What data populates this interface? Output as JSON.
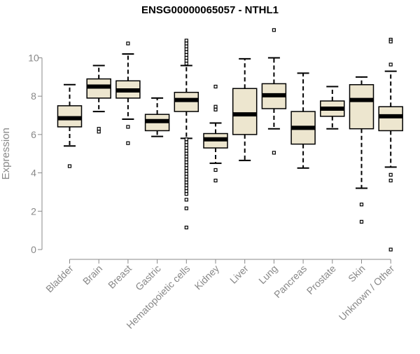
{
  "chart_data": {
    "type": "box",
    "title": "ENSG00000065057 - NTHL1",
    "xlabel": "",
    "ylabel": "Expression",
    "ylim": [
      0,
      11.5
    ],
    "yticks": [
      0,
      2,
      4,
      6,
      8,
      10
    ],
    "grid": false,
    "legend": "none",
    "colors": {
      "box_fill": "#ede6cf",
      "stroke": "#000000",
      "axis": "#888888",
      "tick_label": "#888888"
    },
    "categories": [
      "Bladder",
      "Brain",
      "Breast",
      "Gastric",
      "Hematopoietic cells",
      "Kidney",
      "Liver",
      "Lung",
      "Pancreas",
      "Prostate",
      "Skin",
      "Unknown / Other"
    ],
    "boxes": [
      {
        "category": "Bladder",
        "whisker_low": 5.4,
        "q1": 6.4,
        "median": 6.85,
        "q3": 7.5,
        "whisker_high": 8.6,
        "outliers": [
          4.35
        ]
      },
      {
        "category": "Brain",
        "whisker_low": 7.2,
        "q1": 7.9,
        "median": 8.5,
        "q3": 8.9,
        "whisker_high": 9.6,
        "outliers": [
          6.3,
          6.15
        ]
      },
      {
        "category": "Breast",
        "whisker_low": 6.8,
        "q1": 7.9,
        "median": 8.3,
        "q3": 8.8,
        "whisker_high": 10.2,
        "outliers": [
          10.75,
          6.4,
          5.55
        ]
      },
      {
        "category": "Gastric",
        "whisker_low": 5.9,
        "q1": 6.2,
        "median": 6.7,
        "q3": 7.05,
        "whisker_high": 7.9,
        "outliers": []
      },
      {
        "category": "Hematopoietic cells",
        "whisker_low": 5.8,
        "q1": 7.2,
        "median": 7.8,
        "q3": 8.2,
        "whisker_high": 9.6,
        "outliers": [
          10.9,
          10.75,
          10.6,
          10.45,
          10.3,
          10.15,
          10.0,
          9.85,
          9.7,
          5.75,
          5.6,
          5.45,
          5.3,
          5.15,
          5.0,
          4.85,
          4.7,
          4.55,
          4.4,
          4.25,
          4.1,
          3.95,
          3.8,
          3.65,
          3.5,
          3.35,
          3.2,
          3.05,
          2.9,
          2.6,
          2.15,
          1.15
        ]
      },
      {
        "category": "Kidney",
        "whisker_low": 4.5,
        "q1": 5.3,
        "median": 5.75,
        "q3": 6.05,
        "whisker_high": 6.6,
        "outliers": [
          8.5,
          7.45,
          7.3,
          4.15,
          3.6
        ]
      },
      {
        "category": "Liver",
        "whisker_low": 4.65,
        "q1": 6.0,
        "median": 7.05,
        "q3": 8.4,
        "whisker_high": 9.95,
        "outliers": []
      },
      {
        "category": "Lung",
        "whisker_low": 6.3,
        "q1": 7.35,
        "median": 8.05,
        "q3": 8.65,
        "whisker_high": 10.0,
        "outliers": [
          11.45,
          5.05
        ]
      },
      {
        "category": "Pancreas",
        "whisker_low": 4.25,
        "q1": 5.5,
        "median": 6.35,
        "q3": 7.2,
        "whisker_high": 9.2,
        "outliers": []
      },
      {
        "category": "Prostate",
        "whisker_low": 6.3,
        "q1": 6.95,
        "median": 7.35,
        "q3": 7.75,
        "whisker_high": 8.5,
        "outliers": []
      },
      {
        "category": "Skin",
        "whisker_low": 3.2,
        "q1": 6.3,
        "median": 7.8,
        "q3": 8.6,
        "whisker_high": 9.0,
        "outliers": [
          2.35,
          1.45
        ]
      },
      {
        "category": "Unknown / Other",
        "whisker_low": 4.3,
        "q1": 6.2,
        "median": 6.95,
        "q3": 7.45,
        "whisker_high": 9.3,
        "outliers": [
          10.95,
          10.85,
          9.65,
          3.9,
          3.6,
          0.0
        ]
      }
    ]
  }
}
